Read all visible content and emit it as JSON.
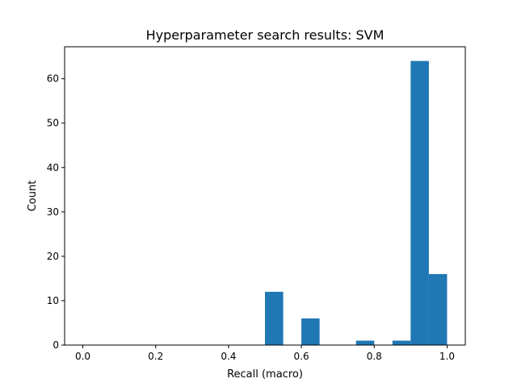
{
  "chart_data": {
    "type": "bar",
    "title": "Hyperparameter search results: SVM",
    "xlabel": "Recall (macro)",
    "ylabel": "Count",
    "xlim": [
      -0.05,
      1.05
    ],
    "ylim": [
      0,
      67.2
    ],
    "xticks": [
      "0.0",
      "0.2",
      "0.4",
      "0.6",
      "0.8",
      "1.0"
    ],
    "yticks": [
      "0",
      "10",
      "20",
      "30",
      "40",
      "50",
      "60"
    ],
    "bin_edges": [
      0.0,
      0.05,
      0.1,
      0.15,
      0.2,
      0.25,
      0.3,
      0.35,
      0.4,
      0.45,
      0.5,
      0.55,
      0.6,
      0.65,
      0.7,
      0.75,
      0.8,
      0.85,
      0.9,
      0.95,
      1.0
    ],
    "values": [
      0,
      0,
      0,
      0,
      0,
      0,
      0,
      0,
      0,
      0,
      12,
      0,
      6,
      0,
      0,
      1,
      0,
      1,
      64,
      16
    ],
    "bar_color": "#1f77b4",
    "grid": false,
    "legend": "none"
  }
}
